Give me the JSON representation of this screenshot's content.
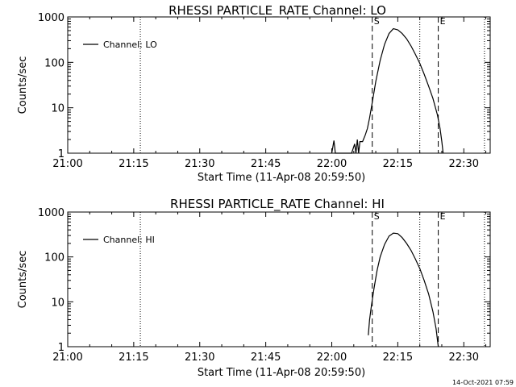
{
  "timestamp": "14-Oct-2021 07:59",
  "chart_data": [
    {
      "type": "line",
      "title": "RHESSI PARTICLE_RATE Channel: LO",
      "xlabel": "Start Time (11-Apr-08 20:59:50)",
      "ylabel": "Counts/sec",
      "legend": {
        "label": "Channel: LO",
        "position": "top-left"
      },
      "xlim": [
        0,
        96
      ],
      "ylim": [
        1,
        1000
      ],
      "yscale": "log",
      "x_ticks": [
        {
          "t": 0,
          "label": "21:00"
        },
        {
          "t": 15,
          "label": "21:15"
        },
        {
          "t": 30,
          "label": "21:30"
        },
        {
          "t": 45,
          "label": "21:45"
        },
        {
          "t": 60,
          "label": "22:00"
        },
        {
          "t": 75,
          "label": "22:15"
        },
        {
          "t": 90,
          "label": "22:30"
        }
      ],
      "y_ticks": [
        {
          "v": 1,
          "label": "1"
        },
        {
          "v": 10,
          "label": "10"
        },
        {
          "v": 100,
          "label": "100"
        },
        {
          "v": 1000,
          "label": "1000"
        }
      ],
      "dotted_lines": [
        16.5,
        80,
        94.7
      ],
      "dashed_lines": [
        {
          "t": 69.2,
          "label": "S"
        },
        {
          "t": 84.2,
          "label": "E"
        }
      ],
      "series": [
        {
          "name": "Channel: LO",
          "points": [
            [
              60,
              1
            ],
            [
              60.5,
              1.9
            ],
            [
              60.8,
              1
            ],
            [
              64.5,
              1
            ],
            [
              65.2,
              1.6
            ],
            [
              65.5,
              1
            ],
            [
              65.8,
              2.0
            ],
            [
              66.1,
              1
            ],
            [
              66.4,
              1.8
            ],
            [
              67.0,
              1.8
            ],
            [
              67.6,
              2.5
            ],
            [
              68.1,
              3.5
            ],
            [
              68.6,
              6
            ],
            [
              69.3,
              15
            ],
            [
              70.0,
              38
            ],
            [
              71.0,
              110
            ],
            [
              72.0,
              250
            ],
            [
              73.0,
              430
            ],
            [
              74.0,
              550
            ],
            [
              75.0,
              520
            ],
            [
              76.0,
              430
            ],
            [
              77.0,
              330
            ],
            [
              78.0,
              230
            ],
            [
              79.0,
              150
            ],
            [
              80.0,
              95
            ],
            [
              81.0,
              55
            ],
            [
              82.0,
              30
            ],
            [
              83.0,
              16
            ],
            [
              84.0,
              7
            ],
            [
              84.6,
              3.5
            ],
            [
              85.0,
              1.8
            ],
            [
              85.3,
              1
            ]
          ]
        }
      ]
    },
    {
      "type": "line",
      "title": "RHESSI PARTICLE_RATE Channel: HI",
      "xlabel": "Start Time (11-Apr-08 20:59:50)",
      "ylabel": "Counts/sec",
      "legend": {
        "label": "Channel: HI",
        "position": "top-left"
      },
      "xlim": [
        0,
        96
      ],
      "ylim": [
        1,
        1000
      ],
      "yscale": "log",
      "x_ticks": [
        {
          "t": 0,
          "label": "21:00"
        },
        {
          "t": 15,
          "label": "21:15"
        },
        {
          "t": 30,
          "label": "21:30"
        },
        {
          "t": 45,
          "label": "21:45"
        },
        {
          "t": 60,
          "label": "22:00"
        },
        {
          "t": 75,
          "label": "22:15"
        },
        {
          "t": 90,
          "label": "22:30"
        }
      ],
      "y_ticks": [
        {
          "v": 1,
          "label": "1"
        },
        {
          "v": 10,
          "label": "10"
        },
        {
          "v": 100,
          "label": "100"
        },
        {
          "v": 1000,
          "label": "1000"
        }
      ],
      "dotted_lines": [
        16.5,
        80,
        94.7
      ],
      "dashed_lines": [
        {
          "t": 69.2,
          "label": "S"
        },
        {
          "t": 84.2,
          "label": "E"
        }
      ],
      "series": [
        {
          "name": "Channel: HI",
          "points": [
            [
              68.3,
              1.8
            ],
            [
              68.6,
              4
            ],
            [
              69.0,
              8
            ],
            [
              69.6,
              20
            ],
            [
              70.3,
              50
            ],
            [
              71.0,
              100
            ],
            [
              72.0,
              190
            ],
            [
              73.0,
              290
            ],
            [
              74.0,
              340
            ],
            [
              75.0,
              330
            ],
            [
              76.0,
              270
            ],
            [
              77.0,
              200
            ],
            [
              78.0,
              140
            ],
            [
              79.0,
              90
            ],
            [
              80.0,
              55
            ],
            [
              81.0,
              30
            ],
            [
              82.0,
              15
            ],
            [
              83.0,
              6
            ],
            [
              83.7,
              2.5
            ],
            [
              84.2,
              1
            ]
          ]
        }
      ]
    }
  ]
}
